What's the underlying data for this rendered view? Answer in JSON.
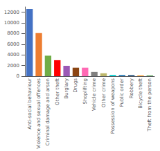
{
  "chart_data": {
    "type": "bar",
    "categories": [
      "Anti-social behaviour",
      "Violence and sexual offences",
      "Criminal damage and arson",
      "Other theft",
      "Burglary",
      "Drugs",
      "Shoplifting",
      "Vehicle crime",
      "Other crime",
      "Possession of weapons",
      "Public order",
      "Robbery",
      "Bicycle theft",
      "Theft from the person"
    ],
    "values": [
      12600,
      8100,
      3850,
      3000,
      1950,
      1600,
      1600,
      800,
      550,
      230,
      220,
      200,
      130,
      110
    ],
    "colors": [
      "#4472C4",
      "#ED7D31",
      "#70AD47",
      "#FF0000",
      "#9B59B6",
      "#8B4513",
      "#FF69B4",
      "#808080",
      "#BDB76B",
      "#00CED1",
      "#1F77B4",
      "#1F4E79",
      "#FF8C00",
      "#228B22"
    ],
    "ylim": [
      0,
      13000
    ],
    "yticks": [
      0,
      2000,
      4000,
      6000,
      8000,
      10000,
      12000
    ],
    "grid": false
  }
}
